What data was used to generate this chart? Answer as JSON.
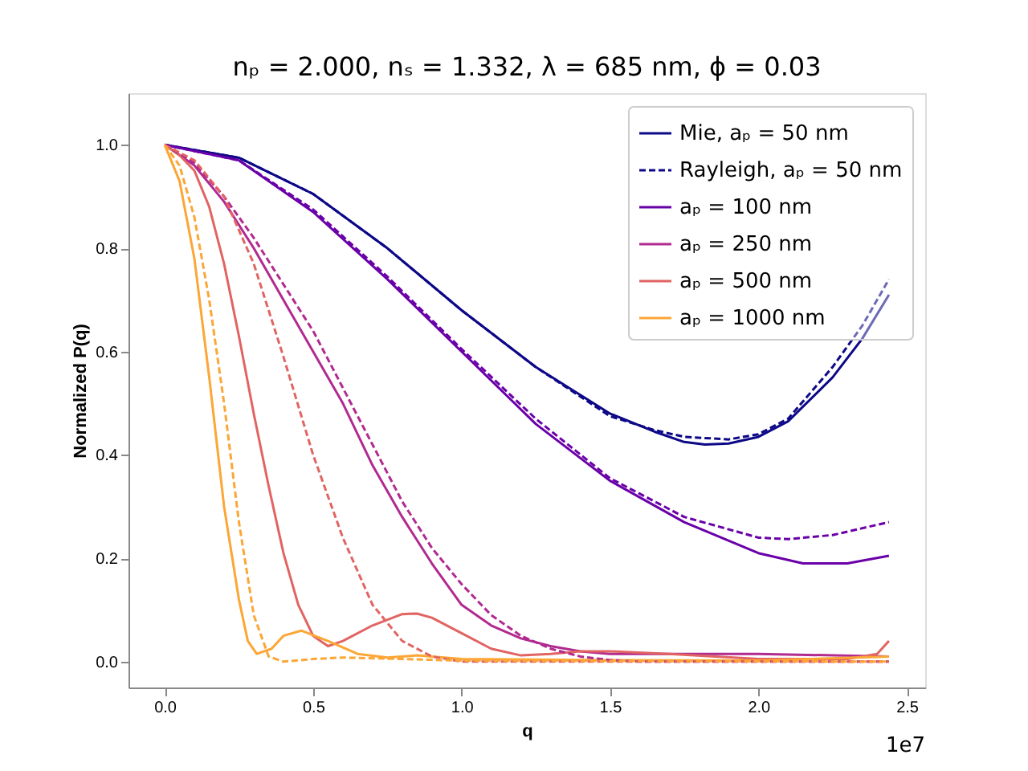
{
  "chart_data": {
    "type": "line",
    "title": "nₚ = 2.000, nₛ = 1.332, λ = 685 nm, ϕ = 0.03",
    "xlabel": "q",
    "ylabel": "Normalized P(q)",
    "annotations": [
      "1e7"
    ],
    "xlim": [
      -0.122,
      2.562
    ],
    "ylim": [
      -0.05,
      1.1
    ],
    "xticks": [
      {
        "value": 0,
        "label": "0.0"
      },
      0.5,
      {
        "value": 1,
        "label": "1.0"
      },
      1.5,
      {
        "value": 2,
        "label": "2.0"
      },
      2.5
    ],
    "yticks": [
      {
        "value": 0,
        "label": "0.0"
      },
      0.2,
      0.4,
      0.6,
      0.8,
      {
        "value": 1,
        "label": "1.0"
      }
    ],
    "grid": false,
    "legend": "top right",
    "marker": "none",
    "series": [
      {
        "name": "Mie, aₚ = 50 nm",
        "color": "#0d0887",
        "line_style": "solid",
        "x": [
          0,
          0.25,
          0.5,
          0.75,
          1.0,
          1.25,
          1.5,
          1.65,
          1.75,
          1.82,
          1.9,
          2.0,
          2.1,
          2.25,
          2.35,
          2.44
        ],
        "values": [
          1.0,
          0.975,
          0.905,
          0.8,
          0.68,
          0.57,
          0.48,
          0.445,
          0.425,
          0.42,
          0.422,
          0.435,
          0.465,
          0.55,
          0.625,
          0.71
        ]
      },
      {
        "name": "Rayleigh, aₚ = 50 nm",
        "color": "#0d0887",
        "line_style": "dashed",
        "x": [
          0,
          0.25,
          0.5,
          0.75,
          1.0,
          1.25,
          1.5,
          1.65,
          1.75,
          1.9,
          2.0,
          2.1,
          2.25,
          2.35,
          2.44
        ],
        "values": [
          1.0,
          0.975,
          0.905,
          0.8,
          0.68,
          0.57,
          0.475,
          0.448,
          0.435,
          0.43,
          0.44,
          0.47,
          0.57,
          0.65,
          0.74
        ]
      },
      {
        "name": "aₚ = 100 nm",
        "color": "#6a00a8",
        "line_style": "solid",
        "x": [
          0,
          0.25,
          0.5,
          0.75,
          1.0,
          1.25,
          1.5,
          1.75,
          2.0,
          2.15,
          2.3,
          2.44
        ],
        "values": [
          1.0,
          0.97,
          0.87,
          0.74,
          0.6,
          0.46,
          0.35,
          0.27,
          0.21,
          0.19,
          0.19,
          0.205
        ]
      },
      {
        "color": "#6a00a8",
        "line_style": "dashed",
        "x": [
          0,
          0.25,
          0.5,
          0.75,
          1.0,
          1.25,
          1.5,
          1.75,
          2.0,
          2.1,
          2.25,
          2.44
        ],
        "values": [
          1.0,
          0.97,
          0.875,
          0.745,
          0.605,
          0.47,
          0.355,
          0.28,
          0.24,
          0.237,
          0.245,
          0.27
        ]
      },
      {
        "name": "aₚ = 250 nm",
        "color": "#b12a90",
        "line_style": "solid",
        "x": [
          0,
          0.1,
          0.2,
          0.3,
          0.4,
          0.5,
          0.6,
          0.7,
          0.8,
          0.9,
          1.0,
          1.1,
          1.2,
          1.3,
          1.4,
          1.5,
          2.0,
          2.44
        ],
        "values": [
          1.0,
          0.96,
          0.89,
          0.8,
          0.7,
          0.6,
          0.5,
          0.38,
          0.28,
          0.19,
          0.11,
          0.07,
          0.045,
          0.03,
          0.02,
          0.015,
          0.015,
          0.01
        ]
      },
      {
        "color": "#b12a90",
        "line_style": "dashed",
        "x": [
          0,
          0.1,
          0.2,
          0.3,
          0.4,
          0.5,
          0.6,
          0.7,
          0.8,
          0.9,
          1.0,
          1.1,
          1.2,
          1.3,
          1.4,
          1.5,
          1.6,
          2.44
        ],
        "values": [
          1.0,
          0.965,
          0.9,
          0.82,
          0.73,
          0.64,
          0.53,
          0.42,
          0.31,
          0.22,
          0.15,
          0.09,
          0.05,
          0.025,
          0.01,
          0.003,
          0.0,
          0.0
        ]
      },
      {
        "name": "aₚ = 500 nm",
        "color": "#e16462",
        "line_style": "solid",
        "x": [
          0,
          0.05,
          0.1,
          0.15,
          0.2,
          0.25,
          0.3,
          0.35,
          0.4,
          0.45,
          0.5,
          0.55,
          0.6,
          0.7,
          0.8,
          0.85,
          0.9,
          1.0,
          1.1,
          1.2,
          1.3,
          1.4,
          1.5,
          1.7,
          2.0,
          2.3,
          2.4,
          2.44
        ],
        "values": [
          1.0,
          0.98,
          0.95,
          0.88,
          0.77,
          0.63,
          0.48,
          0.34,
          0.21,
          0.11,
          0.05,
          0.03,
          0.04,
          0.07,
          0.092,
          0.093,
          0.085,
          0.055,
          0.025,
          0.012,
          0.015,
          0.02,
          0.02,
          0.015,
          0.005,
          0.005,
          0.015,
          0.04
        ]
      },
      {
        "color": "#e16462",
        "line_style": "dashed",
        "x": [
          0,
          0.1,
          0.2,
          0.3,
          0.4,
          0.5,
          0.6,
          0.7,
          0.8,
          0.9,
          1.0,
          2.44
        ],
        "values": [
          1.0,
          0.97,
          0.9,
          0.77,
          0.59,
          0.4,
          0.24,
          0.11,
          0.04,
          0.01,
          0.0,
          0.0
        ]
      },
      {
        "name": "aₚ = 1000 nm",
        "color": "#fca636",
        "line_style": "solid",
        "x": [
          0,
          0.05,
          0.1,
          0.15,
          0.2,
          0.25,
          0.28,
          0.31,
          0.36,
          0.4,
          0.46,
          0.55,
          0.65,
          0.75,
          0.85,
          1.0,
          1.5,
          2.0,
          2.44
        ],
        "values": [
          1.0,
          0.93,
          0.78,
          0.55,
          0.3,
          0.12,
          0.04,
          0.015,
          0.025,
          0.05,
          0.06,
          0.04,
          0.015,
          0.008,
          0.012,
          0.005,
          0.003,
          0.002,
          0.01
        ]
      },
      {
        "color": "#fca636",
        "line_style": "dashed",
        "x": [
          0,
          0.05,
          0.1,
          0.15,
          0.2,
          0.25,
          0.3,
          0.35,
          0.4,
          0.5,
          0.6,
          0.8,
          1.0,
          2.44
        ],
        "values": [
          1.0,
          0.96,
          0.86,
          0.7,
          0.5,
          0.27,
          0.09,
          0.01,
          0.0,
          0.005,
          0.008,
          0.005,
          0.002,
          0.0
        ]
      }
    ]
  }
}
